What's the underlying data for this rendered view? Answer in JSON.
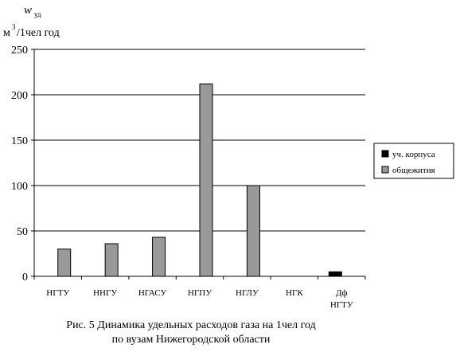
{
  "chart_data": {
    "type": "bar",
    "ylabel_symbol": "w",
    "ylabel_sub": "уд",
    "ylabel_units_pre": "м",
    "ylabel_units_sup": "3",
    "ylabel_units_post": "/1чел год",
    "ylim": [
      0,
      250
    ],
    "yticks": [
      "0",
      "50",
      "100",
      "150",
      "200",
      "250"
    ],
    "grid": true,
    "legend_position": "right",
    "categories": [
      "НГТУ",
      "ННГУ",
      "НГАСУ",
      "НГПУ",
      "НГЛУ",
      "НГК",
      "Дф НГТУ"
    ],
    "category_lines": [
      [
        "НГТУ"
      ],
      [
        "ННГУ"
      ],
      [
        "НГАСУ"
      ],
      [
        "НГПУ"
      ],
      [
        "НГЛУ"
      ],
      [
        "НГК"
      ],
      [
        "Дф",
        "НГТУ"
      ]
    ],
    "series": [
      {
        "name": "уч. корпуса",
        "color": "#000000",
        "values": [
          0,
          0,
          0,
          0,
          0,
          0,
          5
        ]
      },
      {
        "name": "общежития",
        "color": "#999999",
        "values": [
          30,
          36,
          43,
          212,
          100,
          0,
          0
        ]
      }
    ],
    "caption_line1": "Рис. 5 Динамика удельных расходов газа на 1чел     год",
    "caption_line2": "по вузам Нижегородской области"
  }
}
